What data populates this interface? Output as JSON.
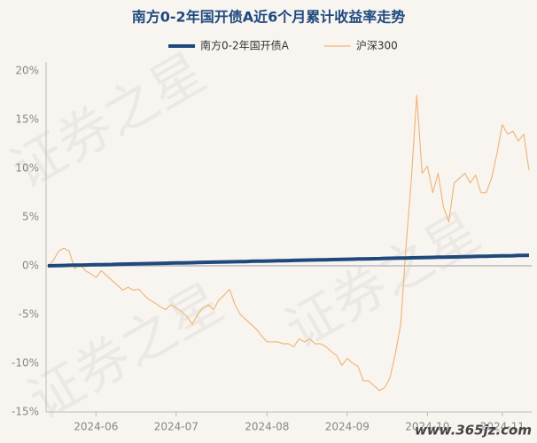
{
  "chart_data": {
    "type": "line",
    "title": "南方0-2年国开债A近6个月累计收益率走势",
    "watermark": "证券之星",
    "annotations": [
      "www.365jz.com"
    ],
    "legend": "top",
    "grid": false,
    "categories": [
      null,
      null,
      null,
      null,
      null,
      null,
      null,
      null,
      null,
      "2024-06",
      null,
      null,
      null,
      null,
      null,
      null,
      null,
      null,
      null,
      null,
      null,
      null,
      null,
      null,
      "2024-07",
      null,
      null,
      null,
      null,
      null,
      null,
      null,
      null,
      null,
      null,
      null,
      null,
      null,
      null,
      null,
      null,
      "2024-08",
      null,
      null,
      null,
      null,
      null,
      null,
      null,
      null,
      null,
      null,
      null,
      null,
      null,
      null,
      "2024-09",
      null,
      null,
      null,
      null,
      null,
      null,
      null,
      null,
      null,
      null,
      null,
      null,
      null,
      null,
      "2024-10",
      null,
      null,
      null,
      null,
      null,
      null,
      null,
      null,
      null,
      null,
      null,
      null,
      null,
      "2024-11",
      null,
      null,
      null,
      null,
      null
    ],
    "series": [
      {
        "name": "南方0-2年国开债A",
        "color": "#1f497d",
        "width": 4,
        "values": [
          0,
          0.01,
          0.02,
          0.04,
          0.05,
          0.06,
          0.07,
          0.08,
          0.1,
          0.11,
          0.12,
          0.13,
          0.14,
          0.16,
          0.17,
          0.18,
          0.19,
          0.2,
          0.22,
          0.23,
          0.24,
          0.25,
          0.26,
          0.28,
          0.29,
          0.3,
          0.31,
          0.32,
          0.34,
          0.35,
          0.36,
          0.37,
          0.38,
          0.4,
          0.41,
          0.42,
          0.43,
          0.44,
          0.46,
          0.47,
          0.48,
          0.49,
          0.5,
          0.52,
          0.53,
          0.54,
          0.55,
          0.56,
          0.58,
          0.59,
          0.6,
          0.61,
          0.62,
          0.64,
          0.65,
          0.66,
          0.67,
          0.68,
          0.7,
          0.71,
          0.72,
          0.73,
          0.74,
          0.76,
          0.77,
          0.78,
          0.79,
          0.8,
          0.82,
          0.83,
          0.84,
          0.85,
          0.86,
          0.88,
          0.89,
          0.9,
          0.91,
          0.92,
          0.94,
          0.95,
          0.96,
          0.97,
          0.98,
          1.0,
          1.01,
          1.02,
          1.03,
          1.04,
          1.06,
          1.07,
          1.08
        ]
      },
      {
        "name": "沪深300",
        "color": "#f0b878",
        "width": 1.2,
        "values": [
          0,
          0.5,
          1.5,
          1.8,
          1.5,
          -0.3,
          0.2,
          -0.5,
          -0.8,
          -1.2,
          -0.5,
          -1,
          -1.5,
          -2,
          -2.5,
          -2.2,
          -2.5,
          -2.4,
          -3,
          -3.5,
          -3.8,
          -4.2,
          -4.5,
          -4,
          -4.3,
          -4.7,
          -5.2,
          -6,
          -5,
          -4.3,
          -4,
          -4.5,
          -3.5,
          -3,
          -2.4,
          -4,
          -5,
          -5.5,
          -6,
          -6.5,
          -7.2,
          -7.8,
          -7.8,
          -7.8,
          -8,
          -8,
          -8.3,
          -7.5,
          -7.8,
          -7.5,
          -8,
          -8,
          -8.3,
          -8.8,
          -9.2,
          -10.2,
          -9.5,
          -10,
          -10.3,
          -11.8,
          -11.8,
          -12.3,
          -12.8,
          -12.5,
          -11.5,
          -9,
          -6,
          2,
          9,
          17.5,
          9.5,
          10.2,
          7.5,
          9.5,
          6,
          4.5,
          8.5,
          9,
          9.5,
          8.5,
          9.3,
          7.5,
          7.5,
          9,
          11.5,
          14.5,
          13.5,
          13.8,
          12.8,
          13.5,
          9.8
        ]
      }
    ],
    "ylim": [
      -15,
      20
    ],
    "yticks": [
      {
        "value": -15,
        "label": "-15%"
      },
      {
        "value": -10,
        "label": "-10%"
      },
      {
        "value": -5,
        "label": "-5%"
      },
      {
        "value": 0,
        "label": "0%"
      },
      {
        "value": 5,
        "label": "5%"
      },
      {
        "value": 10,
        "label": "10%"
      },
      {
        "value": 15,
        "label": "15%"
      },
      {
        "value": 20,
        "label": "20%"
      }
    ]
  }
}
